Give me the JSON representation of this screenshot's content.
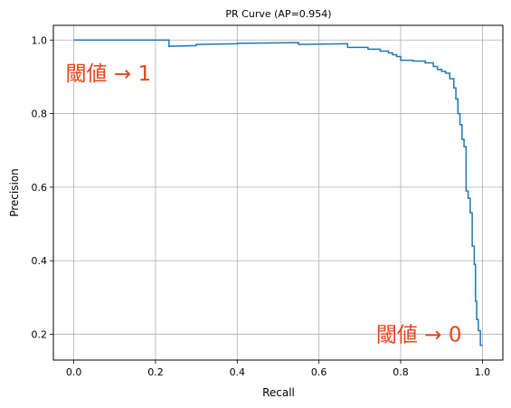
{
  "chart_data": {
    "type": "line",
    "title": "PR Curve (AP=0.954)",
    "xlabel": "Recall",
    "ylabel": "Precision",
    "xlim": [
      -0.05,
      1.05
    ],
    "ylim": [
      0.13,
      1.04
    ],
    "grid": true,
    "x_ticks": [
      0.0,
      0.2,
      0.4,
      0.6,
      0.8,
      1.0
    ],
    "x_tick_labels": [
      "0.0",
      "0.2",
      "0.4",
      "0.6",
      "0.8",
      "1.0"
    ],
    "y_ticks": [
      0.2,
      0.4,
      0.6,
      0.8,
      1.0
    ],
    "y_tick_labels": [
      "0.2",
      "0.4",
      "0.6",
      "0.8",
      "1.0"
    ],
    "line_color": "#1f77b4",
    "series": [
      {
        "step": true,
        "x": [
          0.0,
          0.233,
          0.233,
          0.3,
          0.3,
          0.4,
          0.4,
          0.55,
          0.55,
          0.67,
          0.67,
          0.72,
          0.72,
          0.75,
          0.75,
          0.77,
          0.77,
          0.78,
          0.78,
          0.79,
          0.79,
          0.8,
          0.8,
          0.83,
          0.83,
          0.86,
          0.86,
          0.88,
          0.88,
          0.89,
          0.89,
          0.9,
          0.9,
          0.91,
          0.91,
          0.92,
          0.92,
          0.93,
          0.93,
          0.935,
          0.935,
          0.94,
          0.94,
          0.945,
          0.945,
          0.95,
          0.95,
          0.955,
          0.955,
          0.96,
          0.96,
          0.965,
          0.965,
          0.97,
          0.97,
          0.975,
          0.975,
          0.98,
          0.98,
          0.983,
          0.983,
          0.986,
          0.986,
          0.99,
          0.99,
          0.995,
          0.995,
          1.0
        ],
        "y": [
          1.0,
          1.0,
          0.983,
          0.985,
          0.988,
          0.99,
          0.991,
          0.993,
          0.988,
          0.99,
          0.98,
          0.98,
          0.975,
          0.975,
          0.97,
          0.97,
          0.965,
          0.965,
          0.96,
          0.96,
          0.955,
          0.955,
          0.945,
          0.945,
          0.943,
          0.943,
          0.938,
          0.938,
          0.928,
          0.928,
          0.92,
          0.92,
          0.915,
          0.915,
          0.91,
          0.91,
          0.895,
          0.895,
          0.87,
          0.87,
          0.84,
          0.84,
          0.8,
          0.8,
          0.77,
          0.77,
          0.73,
          0.73,
          0.71,
          0.71,
          0.59,
          0.59,
          0.57,
          0.57,
          0.53,
          0.53,
          0.44,
          0.44,
          0.39,
          0.39,
          0.29,
          0.29,
          0.24,
          0.24,
          0.21,
          0.21,
          0.17,
          0.17
        ]
      }
    ],
    "annotations": [
      {
        "text": "閾値 → 1",
        "x": -0.02,
        "y": 0.91,
        "color": "#e8431d"
      },
      {
        "text": "閾値 → 0",
        "x": 0.74,
        "y": 0.2,
        "color": "#e8431d"
      }
    ]
  }
}
